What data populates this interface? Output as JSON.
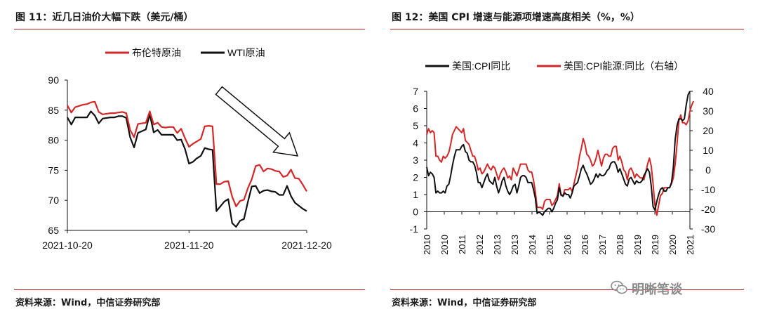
{
  "left": {
    "title": "图 11：近几日油价大幅下跌（美元/桶）",
    "source": "资料来源：Wind，中信证券研究部"
  },
  "right": {
    "title": "图 12：美国 CPI 增速与能源项增速高度相关（%，%）",
    "source": "资料来源：Wind，中信证券研究部"
  },
  "watermark": "明晰笔谈",
  "colors": {
    "red": "#d62728",
    "black": "#111111",
    "rule": "#c0272d"
  },
  "chart_data": [
    {
      "type": "line",
      "title": "近几日油价大幅下跌（美元/桶）",
      "ylim": [
        65,
        90
      ],
      "yticks": [
        65,
        70,
        75,
        80,
        85,
        90
      ],
      "xticks": [
        "2021-10-20",
        "2021-11-20",
        "2021-12-20"
      ],
      "x_range_days": 61,
      "x_tick_days": [
        0,
        31,
        61
      ],
      "series": [
        {
          "name": "布伦特原油",
          "color": "#d62728",
          "values": [
            85.8,
            84.6,
            85.5,
            85.7,
            85.9,
            86.0,
            86.3,
            86.4,
            84.7,
            84.3,
            84.4,
            84.5,
            84.5,
            84.6,
            84.7,
            84.5,
            81.7,
            80.5,
            82.7,
            82.8,
            82.9,
            84.8,
            82.6,
            82.9,
            82.2,
            82.1,
            82.2,
            82.2,
            81.2,
            81.9,
            80.3,
            78.9,
            79.4,
            79.8,
            80.2,
            82.3,
            82.4,
            82.3,
            72.7,
            72.7,
            73.1,
            73.2,
            70.6,
            69.0,
            69.9,
            70.1,
            72.0,
            73.5,
            75.7,
            75.9,
            74.8,
            75.3,
            75.2,
            74.9,
            74.8,
            73.9,
            74.1,
            75.1,
            73.7,
            73.6,
            72.6,
            71.5
          ]
        },
        {
          "name": "WTI原油",
          "color": "#111111",
          "values": [
            83.8,
            82.6,
            83.8,
            83.8,
            83.8,
            83.8,
            84.8,
            84.1,
            82.8,
            83.6,
            83.7,
            83.8,
            83.8,
            84.0,
            84.0,
            83.7,
            80.5,
            78.8,
            81.2,
            81.5,
            81.8,
            84.3,
            81.3,
            81.7,
            80.9,
            80.9,
            80.9,
            80.9,
            80.0,
            80.1,
            78.5,
            76.1,
            76.4,
            77.0,
            77.4,
            78.7,
            78.5,
            78.4,
            68.2,
            69.0,
            69.8,
            70.2,
            66.2,
            65.6,
            66.6,
            66.9,
            69.7,
            72.3,
            72.4,
            71.2,
            71.6,
            71.7,
            71.5,
            71.4,
            70.9,
            70.9,
            72.4,
            70.7,
            69.6,
            69.1,
            68.6,
            68.2
          ]
        }
      ]
    },
    {
      "type": "line",
      "title": "美国 CPI 增速与能源项增速高度相关（%，%）",
      "ylim_left": [
        -1,
        7
      ],
      "yticks_left": [
        -1,
        0,
        1,
        2,
        3,
        4,
        5,
        6,
        7
      ],
      "ylim_right": [
        -30,
        40
      ],
      "yticks_right": [
        -30,
        -20,
        -10,
        0,
        10,
        20,
        30,
        40
      ],
      "xticks": [
        "2010",
        "2010",
        "2011",
        "2012",
        "2013",
        "2013",
        "2014",
        "2015",
        "2016",
        "2016",
        "2017",
        "2018",
        "2019",
        "2019",
        "2020",
        "2021"
      ],
      "x_start": 2010.0,
      "x_end": 2021.917,
      "series": [
        {
          "name": "美国:CPI同比",
          "axis": "left",
          "color": "#111111",
          "values": [
            2.6,
            2.1,
            2.3,
            2.2,
            2.0,
            1.1,
            1.2,
            1.1,
            1.1,
            1.2,
            1.1,
            1.5,
            1.6,
            2.1,
            2.7,
            3.2,
            3.6,
            3.6,
            3.6,
            3.8,
            3.9,
            3.5,
            3.4,
            3.0,
            2.9,
            2.9,
            2.7,
            2.3,
            1.7,
            1.7,
            1.4,
            1.7,
            2.0,
            2.2,
            1.8,
            1.7,
            1.6,
            2.0,
            1.5,
            1.1,
            1.4,
            1.8,
            2.0,
            1.5,
            1.2,
            1.0,
            1.2,
            1.5,
            1.6,
            1.1,
            1.5,
            2.0,
            2.1,
            2.1,
            2.0,
            1.7,
            1.7,
            1.7,
            1.3,
            0.8,
            -0.1,
            0.0,
            -0.1,
            -0.2,
            0.0,
            0.1,
            0.2,
            0.2,
            0.0,
            0.2,
            0.5,
            0.7,
            1.4,
            1.0,
            0.9,
            1.1,
            1.0,
            1.0,
            0.8,
            1.1,
            1.5,
            1.6,
            1.7,
            2.1,
            2.5,
            2.7,
            2.4,
            2.2,
            1.9,
            1.6,
            1.7,
            1.9,
            2.2,
            2.0,
            2.2,
            2.1,
            2.1,
            2.2,
            2.4,
            2.5,
            2.8,
            2.9,
            2.9,
            2.7,
            2.3,
            2.5,
            2.2,
            1.9,
            1.6,
            1.5,
            1.9,
            2.0,
            1.8,
            1.6,
            1.8,
            1.7,
            1.7,
            1.8,
            2.1,
            2.3,
            2.5,
            2.3,
            1.5,
            0.3,
            0.1,
            0.6,
            1.0,
            1.3,
            1.4,
            1.2,
            1.2,
            1.4,
            1.4,
            1.7,
            2.6,
            4.2,
            5.0,
            5.4,
            5.4,
            5.3,
            5.4,
            6.2,
            6.8,
            7.0
          ]
        },
        {
          "name": "美国:CPI能源:同比（右轴）",
          "axis": "right",
          "color": "#d62728",
          "values": [
            18.0,
            21.0,
            19.0,
            20.0,
            19.0,
            7.0,
            7.0,
            5.0,
            4.0,
            7.0,
            6.0,
            7.0,
            9.0,
            13.0,
            18.0,
            20.0,
            22.0,
            21.0,
            20.0,
            19.0,
            21.0,
            15.0,
            14.0,
            13.0,
            10.0,
            7.0,
            7.0,
            4.0,
            0.0,
            1.0,
            -2.0,
            -1.0,
            1.0,
            3.0,
            1.0,
            0.0,
            2.0,
            1.0,
            -2.0,
            -5.0,
            -2.0,
            0.0,
            1.0,
            -1.0,
            -4.0,
            -3.0,
            -5.0,
            1.0,
            -1.0,
            -3.0,
            0.0,
            3.0,
            3.0,
            3.0,
            3.0,
            0.0,
            -1.0,
            -1.0,
            -5.0,
            -11.0,
            -19.0,
            -19.0,
            -19.0,
            -20.0,
            -16.0,
            -15.0,
            -15.0,
            -15.0,
            -18.0,
            -17.0,
            -15.0,
            -13.0,
            -7.0,
            -13.0,
            -13.0,
            -10.0,
            -10.0,
            -10.0,
            -9.0,
            -11.0,
            -7.0,
            -3.0,
            1.0,
            7.0,
            11.0,
            16.0,
            13.0,
            8.0,
            7.0,
            5.0,
            2.0,
            3.0,
            6.0,
            10.0,
            6.0,
            2.0,
            6.0,
            8.0,
            8.0,
            7.0,
            7.0,
            11.0,
            12.0,
            12.0,
            5.0,
            7.0,
            4.0,
            0.0,
            -1.0,
            -5.0,
            0.0,
            1.0,
            -1.0,
            -4.0,
            -2.0,
            -3.0,
            -4.0,
            -4.0,
            -5.0,
            -1.0,
            3.0,
            6.0,
            2.0,
            -7.0,
            -18.0,
            -23.0,
            -18.0,
            -13.0,
            -12.0,
            -9.0,
            -9.0,
            -9.0,
            -9.0,
            -7.0,
            -4.0,
            3.0,
            13.0,
            25.0,
            28.0,
            24.0,
            24.0,
            23.0,
            25.0,
            30.0,
            33.0,
            35.0
          ]
        }
      ]
    }
  ]
}
